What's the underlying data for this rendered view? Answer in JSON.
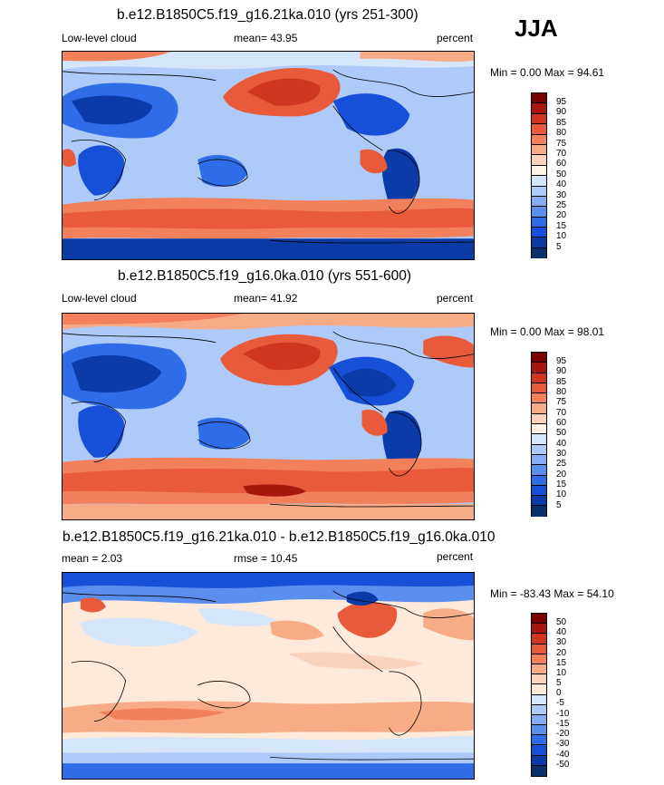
{
  "season": "JJA",
  "palette": {
    "full": [
      "#08306b",
      "#0b3ba8",
      "#1650d8",
      "#2f6de8",
      "#5a8ff0",
      "#85adf5",
      "#aecaf8",
      "#d6e6fa",
      "#fff2e6",
      "#fbd3bc",
      "#f7ab86",
      "#f2805b",
      "#e85a3a",
      "#d0351f",
      "#a8170d",
      "#7a0000"
    ],
    "diff": [
      "#08306b",
      "#0b3ba8",
      "#1650d8",
      "#2f6de8",
      "#5a8ff0",
      "#85adf5",
      "#aecaf8",
      "#d6e6fa",
      "#fdeadb",
      "#fbd3bc",
      "#f7ab86",
      "#f2805b",
      "#e85a3a",
      "#d0351f",
      "#a8170d",
      "#7a0000"
    ]
  },
  "panels": [
    {
      "title": "b.e12.B1850C5.f19_g16.21ka.010 (yrs 251-300)",
      "left_label": "Low-level cloud",
      "mid_label": "mean=  43.95",
      "units": "percent",
      "minmax": "Min =   0.00 Max =  94.61",
      "ticks": [
        "95",
        "90",
        "85",
        "80",
        "75",
        "70",
        "60",
        "50",
        "40",
        "30",
        "25",
        "20",
        "15",
        "10",
        "5"
      ]
    },
    {
      "title": "b.e12.B1850C5.f19_g16.0ka.010 (yrs 551-600)",
      "left_label": "Low-level cloud",
      "mid_label": "mean=  41.92",
      "units": "percent",
      "minmax": "Min =   0.00 Max =  98.01",
      "ticks": [
        "95",
        "90",
        "85",
        "80",
        "75",
        "70",
        "60",
        "50",
        "40",
        "30",
        "25",
        "20",
        "15",
        "10",
        "5"
      ]
    },
    {
      "title": "b.e12.B1850C5.f19_g16.21ka.010 - b.e12.B1850C5.f19_g16.0ka.010",
      "left_label": "mean =  2.03",
      "mid_label": "rmse =  10.45",
      "units": "percent",
      "minmax": "Min = -83.43 Max =  54.10",
      "ticks": [
        "50",
        "40",
        "30",
        "20",
        "15",
        "10",
        "5",
        "0",
        "-5",
        "-10",
        "-15",
        "-20",
        "-30",
        "-40",
        "-50"
      ]
    }
  ]
}
